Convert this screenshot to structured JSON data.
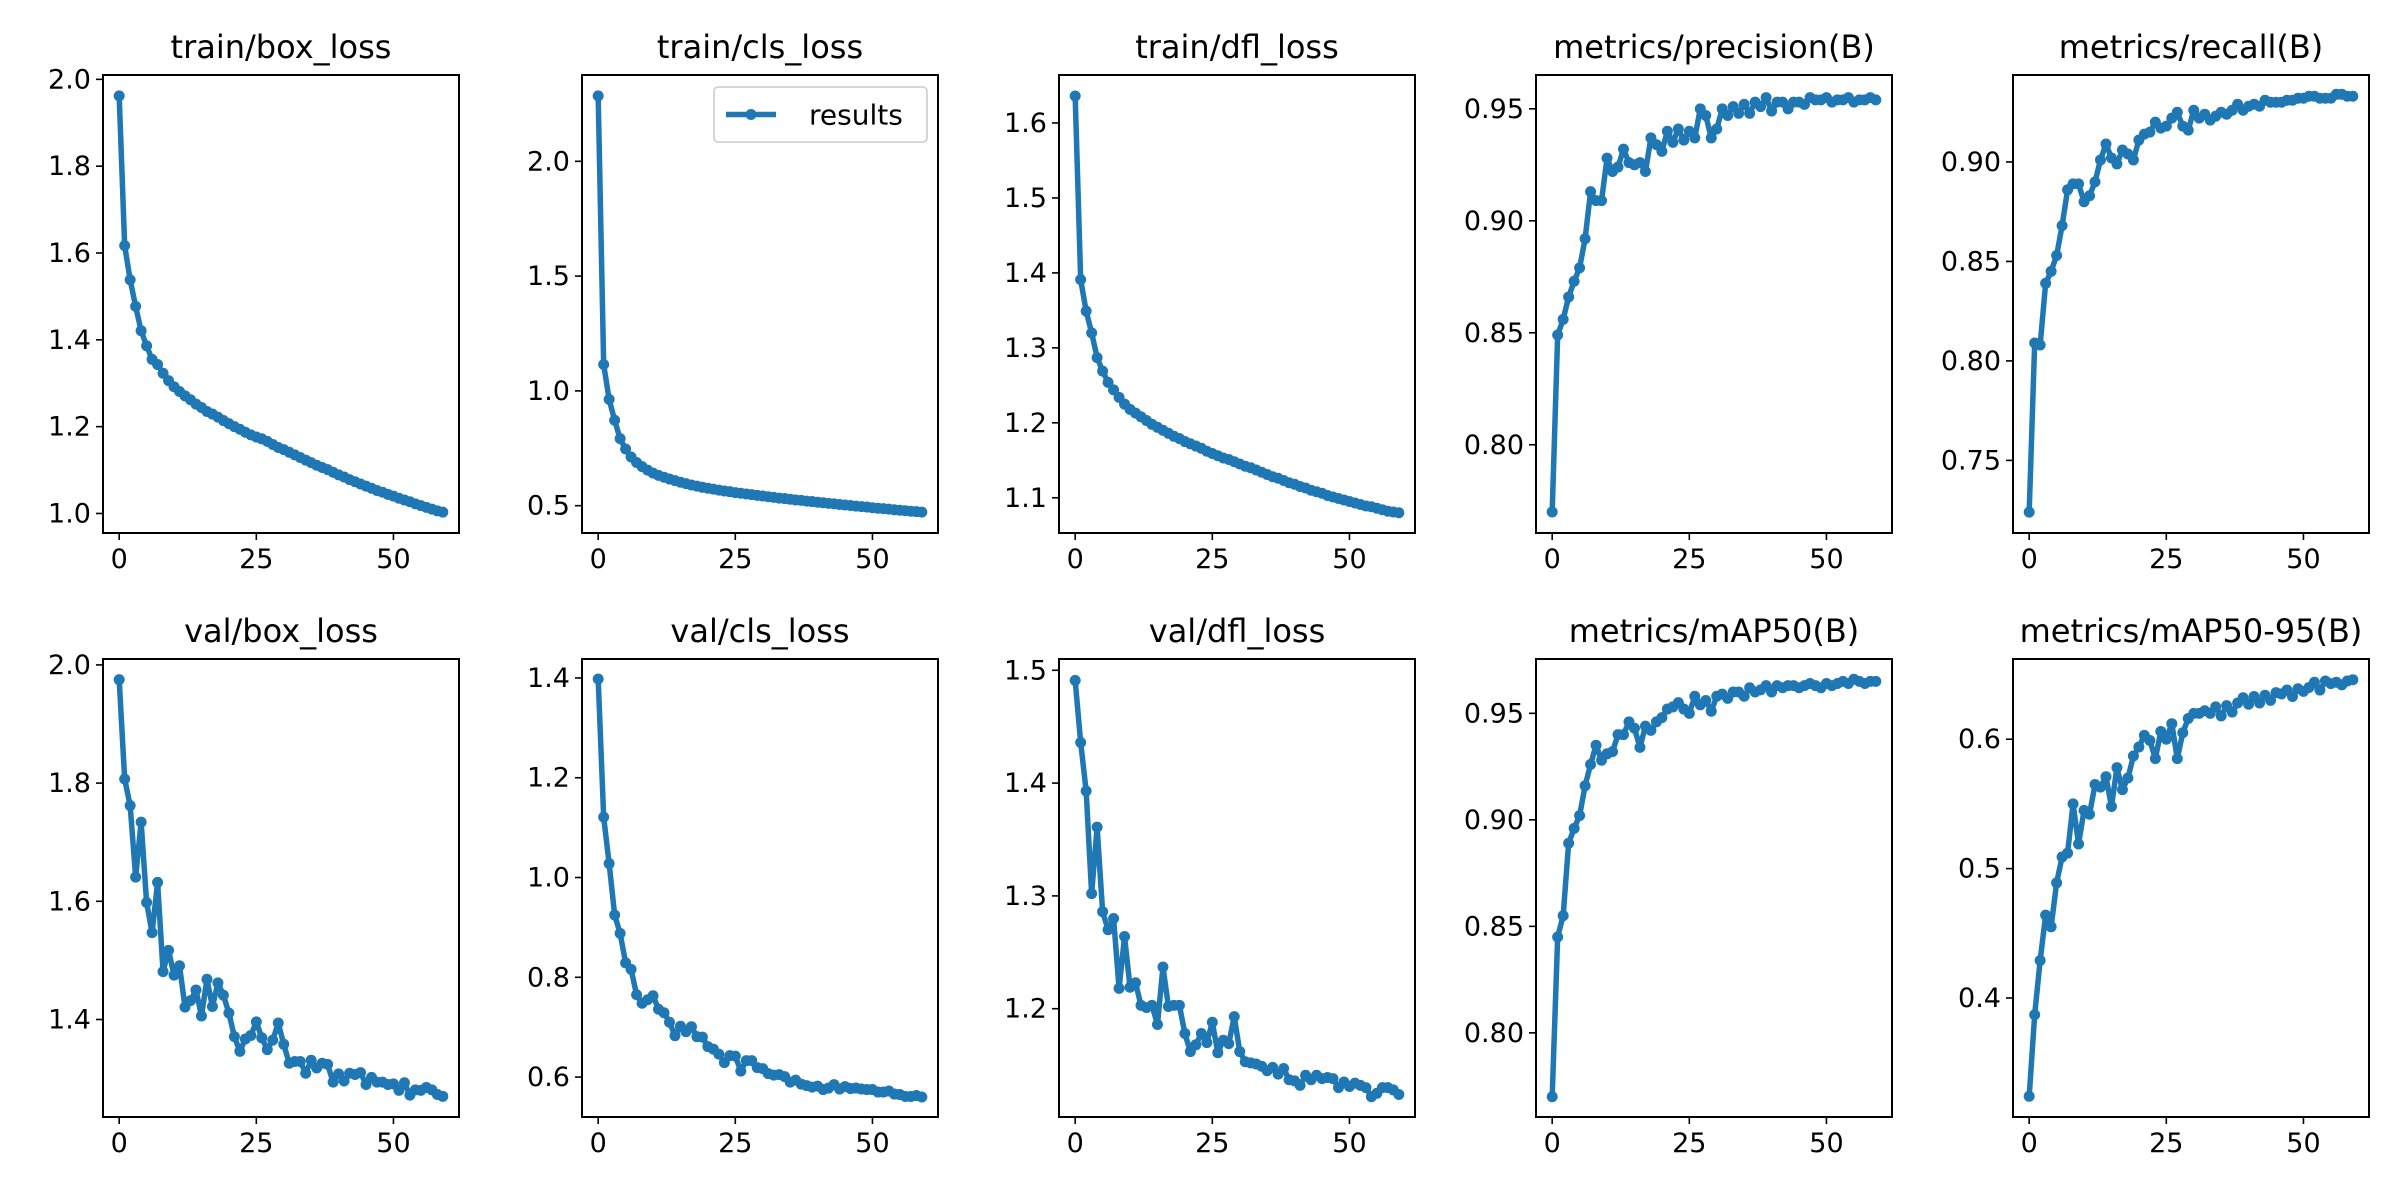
{
  "chart_data": [
    {
      "type": "line",
      "title": "train/box_loss",
      "series": [
        {
          "name": "results",
          "color": "#1f77b4",
          "values": [
            1.962,
            1.617,
            1.538,
            1.477,
            1.421,
            1.386,
            1.355,
            1.343,
            1.323,
            1.306,
            1.292,
            1.281,
            1.271,
            1.262,
            1.252,
            1.244,
            1.235,
            1.229,
            1.222,
            1.214,
            1.207,
            1.2,
            1.194,
            1.187,
            1.181,
            1.176,
            1.172,
            1.166,
            1.159,
            1.152,
            1.147,
            1.141,
            1.135,
            1.129,
            1.123,
            1.117,
            1.111,
            1.106,
            1.101,
            1.095,
            1.089,
            1.084,
            1.078,
            1.073,
            1.068,
            1.063,
            1.058,
            1.053,
            1.049,
            1.044,
            1.04,
            1.035,
            1.031,
            1.027,
            1.022,
            1.018,
            1.014,
            1.01,
            1.006,
            1.003
          ]
        }
      ],
      "xticks": [
        0,
        25,
        50
      ],
      "yticks": [
        1.0,
        1.2,
        1.4,
        1.6,
        1.8,
        2.0
      ],
      "ytick_labels": [
        "1.0",
        "1.2",
        "1.4",
        "1.6",
        "1.8",
        "2.0"
      ],
      "xlim": [
        -2.95,
        61.95
      ],
      "ylim": [
        0.955,
        2.01
      ]
    },
    {
      "type": "line",
      "title": "train/cls_loss",
      "legend": {
        "label": "results",
        "position": "top-right"
      },
      "series": [
        {
          "name": "results",
          "color": "#1f77b4",
          "values": [
            2.285,
            1.115,
            0.963,
            0.872,
            0.792,
            0.747,
            0.712,
            0.688,
            0.67,
            0.655,
            0.642,
            0.632,
            0.624,
            0.616,
            0.609,
            0.602,
            0.596,
            0.59,
            0.585,
            0.58,
            0.576,
            0.572,
            0.568,
            0.564,
            0.561,
            0.557,
            0.554,
            0.551,
            0.548,
            0.545,
            0.542,
            0.539,
            0.536,
            0.533,
            0.531,
            0.528,
            0.525,
            0.523,
            0.52,
            0.518,
            0.515,
            0.513,
            0.51,
            0.508,
            0.505,
            0.503,
            0.501,
            0.498,
            0.496,
            0.494,
            0.491,
            0.489,
            0.487,
            0.485,
            0.482,
            0.48,
            0.478,
            0.476,
            0.474,
            0.472
          ]
        }
      ],
      "xticks": [
        0,
        25,
        50
      ],
      "yticks": [
        0.5,
        1.0,
        1.5,
        2.0
      ],
      "ytick_labels": [
        "0.5",
        "1.0",
        "1.5",
        "2.0"
      ],
      "xlim": [
        -2.95,
        61.95
      ],
      "ylim": [
        0.381,
        2.376
      ]
    },
    {
      "type": "line",
      "title": "train/dfl_loss",
      "series": [
        {
          "name": "results",
          "color": "#1f77b4",
          "values": [
            1.636,
            1.391,
            1.349,
            1.32,
            1.287,
            1.269,
            1.254,
            1.244,
            1.234,
            1.225,
            1.218,
            1.213,
            1.208,
            1.203,
            1.198,
            1.194,
            1.19,
            1.186,
            1.182,
            1.179,
            1.175,
            1.172,
            1.169,
            1.166,
            1.162,
            1.159,
            1.156,
            1.153,
            1.151,
            1.148,
            1.145,
            1.142,
            1.14,
            1.137,
            1.134,
            1.131,
            1.128,
            1.126,
            1.123,
            1.12,
            1.118,
            1.115,
            1.113,
            1.11,
            1.108,
            1.106,
            1.103,
            1.101,
            1.099,
            1.097,
            1.095,
            1.093,
            1.091,
            1.089,
            1.088,
            1.086,
            1.084,
            1.082,
            1.081,
            1.08
          ]
        }
      ],
      "xticks": [
        0,
        25,
        50
      ],
      "yticks": [
        1.1,
        1.2,
        1.3,
        1.4,
        1.5,
        1.6
      ],
      "ytick_labels": [
        "1.1",
        "1.2",
        "1.3",
        "1.4",
        "1.5",
        "1.6"
      ],
      "xlim": [
        -2.95,
        61.95
      ],
      "ylim": [
        1.053,
        1.664
      ]
    },
    {
      "type": "line",
      "title": "metrics/precision(B)",
      "series": [
        {
          "name": "results",
          "color": "#1f77b4",
          "values": [
            0.77,
            0.849,
            0.856,
            0.866,
            0.873,
            0.879,
            0.892,
            0.913,
            0.909,
            0.909,
            0.928,
            0.922,
            0.924,
            0.932,
            0.926,
            0.925,
            0.926,
            0.922,
            0.937,
            0.934,
            0.931,
            0.94,
            0.935,
            0.941,
            0.936,
            0.94,
            0.937,
            0.95,
            0.947,
            0.937,
            0.941,
            0.95,
            0.947,
            0.951,
            0.948,
            0.952,
            0.948,
            0.953,
            0.951,
            0.955,
            0.949,
            0.953,
            0.953,
            0.95,
            0.953,
            0.953,
            0.952,
            0.955,
            0.954,
            0.954,
            0.955,
            0.953,
            0.954,
            0.954,
            0.955,
            0.953,
            0.954,
            0.954,
            0.955,
            0.954
          ]
        }
      ],
      "xticks": [
        0,
        25,
        50
      ],
      "yticks": [
        0.8,
        0.85,
        0.9,
        0.95
      ],
      "ytick_labels": [
        "0.80",
        "0.85",
        "0.90",
        "0.95"
      ],
      "xlim": [
        -2.95,
        61.95
      ],
      "ylim": [
        0.7606,
        0.9651
      ]
    },
    {
      "type": "line",
      "title": "metrics/recall(B)",
      "series": [
        {
          "name": "results",
          "color": "#1f77b4",
          "values": [
            0.724,
            0.809,
            0.808,
            0.839,
            0.845,
            0.853,
            0.868,
            0.886,
            0.889,
            0.889,
            0.88,
            0.883,
            0.89,
            0.901,
            0.909,
            0.902,
            0.899,
            0.906,
            0.904,
            0.901,
            0.911,
            0.914,
            0.915,
            0.92,
            0.917,
            0.918,
            0.922,
            0.925,
            0.918,
            0.916,
            0.926,
            0.922,
            0.924,
            0.921,
            0.923,
            0.925,
            0.924,
            0.926,
            0.929,
            0.926,
            0.928,
            0.929,
            0.928,
            0.931,
            0.93,
            0.93,
            0.93,
            0.931,
            0.931,
            0.932,
            0.932,
            0.933,
            0.933,
            0.932,
            0.932,
            0.932,
            0.934,
            0.934,
            0.933,
            0.933
          ]
        }
      ],
      "xticks": [
        0,
        25,
        50
      ],
      "yticks": [
        0.75,
        0.8,
        0.85,
        0.9
      ],
      "ytick_labels": [
        "0.75",
        "0.80",
        "0.85",
        "0.90"
      ],
      "xlim": [
        -2.95,
        61.95
      ],
      "ylim": [
        0.7135,
        0.9437
      ]
    },
    {
      "type": "line",
      "title": "val/box_loss",
      "series": [
        {
          "name": "results",
          "color": "#1f77b4",
          "values": [
            1.975,
            1.807,
            1.762,
            1.641,
            1.734,
            1.598,
            1.547,
            1.632,
            1.481,
            1.517,
            1.475,
            1.491,
            1.421,
            1.432,
            1.45,
            1.406,
            1.468,
            1.422,
            1.462,
            1.441,
            1.411,
            1.371,
            1.346,
            1.367,
            1.373,
            1.396,
            1.369,
            1.349,
            1.365,
            1.394,
            1.358,
            1.326,
            1.329,
            1.329,
            1.309,
            1.331,
            1.318,
            1.326,
            1.324,
            1.294,
            1.308,
            1.296,
            1.309,
            1.307,
            1.31,
            1.29,
            1.302,
            1.294,
            1.294,
            1.29,
            1.291,
            1.28,
            1.293,
            1.272,
            1.281,
            1.28,
            1.285,
            1.281,
            1.273,
            1.27
          ]
        }
      ],
      "xticks": [
        0,
        25,
        50
      ],
      "yticks": [
        1.4,
        1.6,
        1.8,
        2.0
      ],
      "ytick_labels": [
        "1.4",
        "1.6",
        "1.8",
        "2.0"
      ],
      "xlim": [
        -2.95,
        61.95
      ],
      "ylim": [
        1.235,
        2.01
      ]
    },
    {
      "type": "line",
      "title": "val/cls_loss",
      "series": [
        {
          "name": "results",
          "color": "#1f77b4",
          "values": [
            1.398,
            1.121,
            1.028,
            0.925,
            0.888,
            0.829,
            0.816,
            0.765,
            0.748,
            0.755,
            0.763,
            0.736,
            0.729,
            0.71,
            0.683,
            0.702,
            0.691,
            0.701,
            0.681,
            0.68,
            0.661,
            0.656,
            0.646,
            0.629,
            0.643,
            0.642,
            0.612,
            0.633,
            0.633,
            0.619,
            0.617,
            0.607,
            0.604,
            0.605,
            0.601,
            0.59,
            0.594,
            0.586,
            0.583,
            0.58,
            0.582,
            0.575,
            0.578,
            0.585,
            0.576,
            0.581,
            0.577,
            0.578,
            0.576,
            0.575,
            0.575,
            0.57,
            0.57,
            0.572,
            0.566,
            0.565,
            0.561,
            0.561,
            0.563,
            0.56
          ]
        }
      ],
      "xticks": [
        0,
        25,
        50
      ],
      "yticks": [
        0.6,
        0.8,
        1.0,
        1.2,
        1.4
      ],
      "ytick_labels": [
        "0.6",
        "0.8",
        "1.0",
        "1.2",
        "1.4"
      ],
      "xlim": [
        -2.95,
        61.95
      ],
      "ylim": [
        0.52,
        1.438
      ]
    },
    {
      "type": "line",
      "title": "val/dfl_loss",
      "series": [
        {
          "name": "results",
          "color": "#1f77b4",
          "values": [
            1.491,
            1.436,
            1.393,
            1.302,
            1.361,
            1.286,
            1.27,
            1.28,
            1.218,
            1.264,
            1.219,
            1.223,
            1.203,
            1.201,
            1.203,
            1.186,
            1.237,
            1.202,
            1.203,
            1.203,
            1.178,
            1.162,
            1.168,
            1.178,
            1.17,
            1.188,
            1.161,
            1.172,
            1.169,
            1.193,
            1.162,
            1.153,
            1.152,
            1.151,
            1.149,
            1.145,
            1.148,
            1.142,
            1.147,
            1.137,
            1.136,
            1.132,
            1.141,
            1.137,
            1.141,
            1.138,
            1.139,
            1.138,
            1.13,
            1.135,
            1.131,
            1.134,
            1.132,
            1.13,
            1.122,
            1.125,
            1.13,
            1.13,
            1.128,
            1.124
          ]
        }
      ],
      "xticks": [
        0,
        25,
        50
      ],
      "yticks": [
        1.2,
        1.3,
        1.4,
        1.5
      ],
      "ytick_labels": [
        "1.2",
        "1.3",
        "1.4",
        "1.5"
      ],
      "xlim": [
        -2.95,
        61.95
      ],
      "ylim": [
        1.104,
        1.51
      ]
    },
    {
      "type": "line",
      "title": "metrics/mAP50(B)",
      "series": [
        {
          "name": "results",
          "color": "#1f77b4",
          "values": [
            0.77,
            0.845,
            0.855,
            0.889,
            0.896,
            0.902,
            0.916,
            0.926,
            0.935,
            0.928,
            0.931,
            0.932,
            0.94,
            0.94,
            0.946,
            0.943,
            0.934,
            0.944,
            0.942,
            0.946,
            0.948,
            0.952,
            0.953,
            0.955,
            0.952,
            0.95,
            0.958,
            0.954,
            0.956,
            0.951,
            0.958,
            0.959,
            0.957,
            0.96,
            0.96,
            0.958,
            0.962,
            0.96,
            0.961,
            0.963,
            0.96,
            0.963,
            0.962,
            0.963,
            0.963,
            0.962,
            0.963,
            0.964,
            0.963,
            0.962,
            0.964,
            0.963,
            0.964,
            0.965,
            0.964,
            0.966,
            0.965,
            0.964,
            0.965,
            0.965
          ]
        }
      ],
      "xticks": [
        0,
        25,
        50
      ],
      "yticks": [
        0.8,
        0.85,
        0.9,
        0.95
      ],
      "ytick_labels": [
        "0.80",
        "0.85",
        "0.90",
        "0.95"
      ],
      "xlim": [
        -2.95,
        61.95
      ],
      "ylim": [
        0.7605,
        0.9755
      ]
    },
    {
      "type": "line",
      "title": "metrics/mAP50-95(B)",
      "series": [
        {
          "name": "results",
          "color": "#1f77b4",
          "values": [
            0.324,
            0.387,
            0.429,
            0.464,
            0.455,
            0.489,
            0.509,
            0.512,
            0.55,
            0.519,
            0.545,
            0.542,
            0.565,
            0.563,
            0.571,
            0.548,
            0.578,
            0.561,
            0.57,
            0.587,
            0.594,
            0.603,
            0.599,
            0.585,
            0.606,
            0.6,
            0.612,
            0.585,
            0.605,
            0.616,
            0.62,
            0.62,
            0.622,
            0.62,
            0.625,
            0.618,
            0.626,
            0.621,
            0.628,
            0.632,
            0.627,
            0.633,
            0.628,
            0.634,
            0.63,
            0.636,
            0.635,
            0.638,
            0.633,
            0.639,
            0.637,
            0.64,
            0.644,
            0.638,
            0.645,
            0.643,
            0.644,
            0.642,
            0.645,
            0.646
          ]
        }
      ],
      "xticks": [
        0,
        25,
        50
      ],
      "yticks": [
        0.4,
        0.5,
        0.6
      ],
      "ytick_labels": [
        "0.4",
        "0.5",
        "0.6"
      ],
      "xlim": [
        -2.95,
        61.95
      ],
      "ylim": [
        0.308,
        0.662
      ]
    }
  ]
}
